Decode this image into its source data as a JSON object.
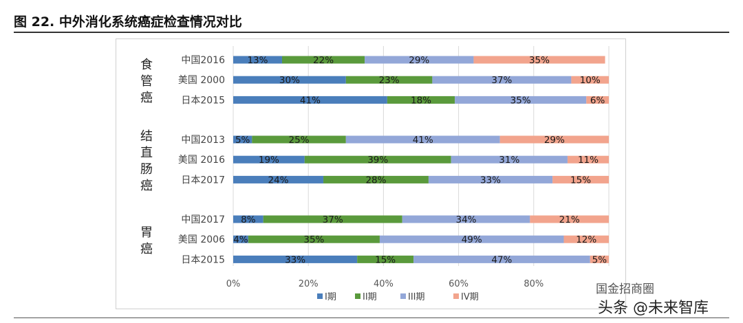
{
  "figure": {
    "title": "图 22. 中外消化系统癌症检查情况对比"
  },
  "watermark": {
    "line1": "国金招商圈",
    "line2": "头条 @未来智库"
  },
  "chart_data": {
    "type": "bar",
    "orientation": "horizontal",
    "stacked": true,
    "groups": [
      {
        "label": "食管癌",
        "categories": [
          "中国2016",
          "美国 2000",
          "日本2015"
        ]
      },
      {
        "label": "结直肠癌",
        "categories": [
          "中国2013",
          "美国 2016",
          "日本2017"
        ]
      },
      {
        "label": "胃癌",
        "categories": [
          "中国2017",
          "美国 2006",
          "日本2015"
        ]
      }
    ],
    "categories": [
      "中国2016",
      "美国 2000",
      "日本2015",
      "中国2013",
      "美国 2016",
      "日本2017",
      "中国2017",
      "美国 2006",
      "日本2015"
    ],
    "series": [
      {
        "name": "I期",
        "color": "#4a7ebb",
        "values": [
          13,
          30,
          41,
          5,
          19,
          24,
          8,
          4,
          33
        ]
      },
      {
        "name": "II期",
        "color": "#5a9a3c",
        "values": [
          22,
          23,
          18,
          25,
          39,
          28,
          37,
          35,
          15
        ]
      },
      {
        "name": "III期",
        "color": "#93a7d8",
        "values": [
          29,
          37,
          35,
          41,
          31,
          33,
          34,
          49,
          47
        ]
      },
      {
        "name": "IV期",
        "color": "#f2a48d",
        "values": [
          35,
          10,
          6,
          29,
          11,
          15,
          21,
          12,
          5
        ]
      }
    ],
    "xlim": [
      0,
      100
    ],
    "xticks": [
      0,
      20,
      40,
      60,
      80
    ],
    "xtick_format": "%",
    "grid": true,
    "legend": "bottom"
  }
}
